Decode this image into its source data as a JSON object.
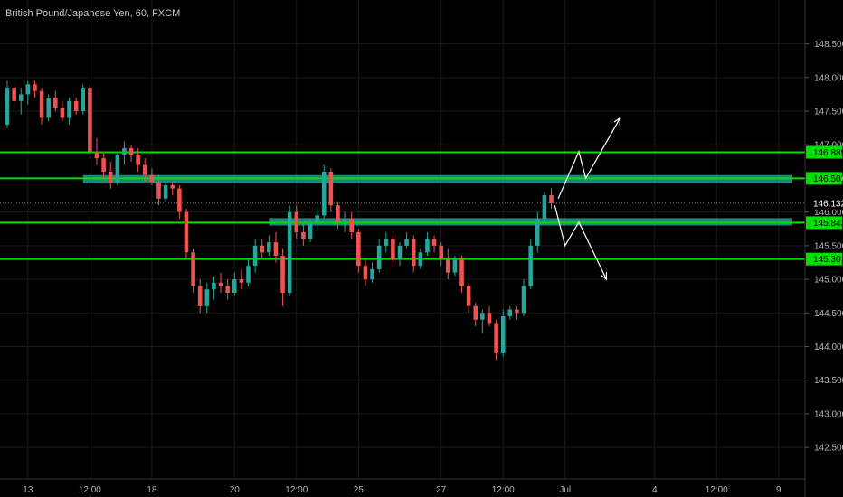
{
  "header": {
    "title": "British Pound/Japanese Yen, 60, FXCM"
  },
  "chart_data": {
    "type": "candlestick",
    "title": "British Pound/Japanese Yen, 60, FXCM",
    "symbol": "GBPJPY",
    "interval": "60",
    "source": "FXCM",
    "ylim": [
      142.3,
      148.75
    ],
    "y_ticks": [
      "142.500",
      "143.000",
      "143.500",
      "144.000",
      "144.500",
      "145.000",
      "145.500",
      "146.000",
      "146.500",
      "147.000",
      "147.500",
      "148.000",
      "148.500"
    ],
    "x_ticks": [
      {
        "label": "13",
        "i": 3
      },
      {
        "label": "12:00",
        "i": 12
      },
      {
        "label": "18",
        "i": 21
      },
      {
        "label": "20",
        "i": 33
      },
      {
        "label": "12:00",
        "i": 42
      },
      {
        "label": "25",
        "i": 51
      },
      {
        "label": "27",
        "i": 63
      },
      {
        "label": "12:00",
        "i": 72
      },
      {
        "label": "Jul",
        "i": 81
      },
      {
        "label": "4",
        "i": 94
      },
      {
        "label": "12:00",
        "i": 103
      },
      {
        "label": "9",
        "i": 112
      }
    ],
    "x_range": [
      0,
      114
    ],
    "colors": {
      "up": "#26a69a",
      "down": "#ef5350",
      "level": "#00e000",
      "zone": "#2ab0a8",
      "arrow": "#ffffff",
      "grid": "#1a1a1a"
    },
    "candles": [
      [
        0,
        147.3,
        147.95,
        147.25,
        147.85
      ],
      [
        1,
        147.85,
        147.9,
        147.55,
        147.65
      ],
      [
        2,
        147.65,
        147.85,
        147.45,
        147.75
      ],
      [
        3,
        147.75,
        147.95,
        147.6,
        147.9
      ],
      [
        4,
        147.9,
        147.95,
        147.7,
        147.8
      ],
      [
        5,
        147.8,
        147.85,
        147.3,
        147.4
      ],
      [
        6,
        147.4,
        147.75,
        147.35,
        147.7
      ],
      [
        7,
        147.7,
        147.8,
        147.5,
        147.55
      ],
      [
        8,
        147.55,
        147.65,
        147.35,
        147.4
      ],
      [
        9,
        147.4,
        147.7,
        147.3,
        147.65
      ],
      [
        10,
        147.65,
        147.7,
        147.45,
        147.5
      ],
      [
        11,
        147.5,
        147.9,
        147.45,
        147.85
      ],
      [
        12,
        147.85,
        147.9,
        146.8,
        146.9
      ],
      [
        13,
        146.9,
        147.1,
        146.7,
        146.8
      ],
      [
        14,
        146.8,
        146.9,
        146.5,
        146.6
      ],
      [
        15,
        146.6,
        146.75,
        146.35,
        146.45
      ],
      [
        16,
        146.45,
        146.9,
        146.4,
        146.85
      ],
      [
        17,
        146.85,
        147.05,
        146.7,
        146.95
      ],
      [
        18,
        146.95,
        147.0,
        146.75,
        146.85
      ],
      [
        19,
        146.85,
        146.95,
        146.6,
        146.7
      ],
      [
        20,
        146.7,
        146.8,
        146.45,
        146.55
      ],
      [
        21,
        146.55,
        146.65,
        146.4,
        146.45
      ],
      [
        22,
        146.45,
        146.55,
        146.1,
        146.2
      ],
      [
        23,
        146.2,
        146.45,
        146.15,
        146.4
      ],
      [
        24,
        146.4,
        146.45,
        146.25,
        146.35
      ],
      [
        25,
        146.35,
        146.4,
        145.9,
        146.0
      ],
      [
        26,
        146.0,
        146.05,
        145.3,
        145.4
      ],
      [
        27,
        145.4,
        145.45,
        144.8,
        144.9
      ],
      [
        28,
        144.9,
        145.0,
        144.5,
        144.6
      ],
      [
        29,
        144.6,
        144.95,
        144.5,
        144.85
      ],
      [
        30,
        144.85,
        145.05,
        144.7,
        144.95
      ],
      [
        31,
        144.95,
        145.1,
        144.8,
        144.9
      ],
      [
        32,
        144.9,
        145.0,
        144.7,
        144.8
      ],
      [
        33,
        144.8,
        145.1,
        144.75,
        145.0
      ],
      [
        34,
        145.0,
        145.15,
        144.85,
        144.95
      ],
      [
        35,
        144.95,
        145.3,
        144.9,
        145.2
      ],
      [
        36,
        145.2,
        145.6,
        145.1,
        145.5
      ],
      [
        37,
        145.5,
        145.6,
        145.3,
        145.4
      ],
      [
        38,
        145.4,
        145.65,
        145.35,
        145.55
      ],
      [
        39,
        145.55,
        145.7,
        145.25,
        145.35
      ],
      [
        40,
        145.35,
        145.45,
        144.6,
        144.8
      ],
      [
        41,
        144.8,
        146.1,
        144.75,
        146.0
      ],
      [
        42,
        146.0,
        146.1,
        145.6,
        145.7
      ],
      [
        43,
        145.7,
        145.85,
        145.5,
        145.6
      ],
      [
        44,
        145.6,
        145.9,
        145.55,
        145.85
      ],
      [
        45,
        145.85,
        146.05,
        145.75,
        145.95
      ],
      [
        46,
        145.95,
        146.7,
        145.9,
        146.6
      ],
      [
        47,
        146.6,
        146.65,
        146.0,
        146.1
      ],
      [
        48,
        146.1,
        146.15,
        145.75,
        145.85
      ],
      [
        49,
        145.85,
        146.0,
        145.7,
        145.9
      ],
      [
        50,
        145.9,
        146.0,
        145.6,
        145.7
      ],
      [
        51,
        145.7,
        145.75,
        145.1,
        145.2
      ],
      [
        52,
        145.2,
        145.3,
        144.9,
        145.0
      ],
      [
        53,
        145.0,
        145.25,
        144.95,
        145.15
      ],
      [
        54,
        145.15,
        145.6,
        145.1,
        145.5
      ],
      [
        55,
        145.5,
        145.7,
        145.4,
        145.6
      ],
      [
        56,
        145.6,
        145.65,
        145.2,
        145.3
      ],
      [
        57,
        145.3,
        145.55,
        145.2,
        145.5
      ],
      [
        58,
        145.5,
        145.7,
        145.45,
        145.6
      ],
      [
        59,
        145.6,
        145.65,
        145.1,
        145.2
      ],
      [
        60,
        145.2,
        145.45,
        145.15,
        145.4
      ],
      [
        61,
        145.4,
        145.7,
        145.35,
        145.6
      ],
      [
        62,
        145.6,
        145.65,
        145.4,
        145.5
      ],
      [
        63,
        145.5,
        145.55,
        145.2,
        145.3
      ],
      [
        64,
        145.3,
        145.45,
        145.0,
        145.1
      ],
      [
        65,
        145.1,
        145.35,
        145.05,
        145.3
      ],
      [
        66,
        145.3,
        145.35,
        144.8,
        144.9
      ],
      [
        67,
        144.9,
        144.95,
        144.5,
        144.6
      ],
      [
        68,
        144.6,
        144.65,
        144.3,
        144.4
      ],
      [
        69,
        144.4,
        144.55,
        144.2,
        144.5
      ],
      [
        70,
        144.5,
        144.6,
        144.3,
        144.35
      ],
      [
        71,
        144.35,
        144.4,
        143.8,
        143.9
      ],
      [
        72,
        143.9,
        144.55,
        143.85,
        144.45
      ],
      [
        73,
        144.45,
        144.6,
        144.4,
        144.55
      ],
      [
        74,
        144.55,
        144.6,
        144.4,
        144.5
      ],
      [
        75,
        144.5,
        145.0,
        144.45,
        144.9
      ],
      [
        76,
        144.9,
        145.6,
        144.85,
        145.5
      ],
      [
        77,
        145.5,
        146.0,
        145.4,
        145.9
      ],
      [
        78,
        145.9,
        146.3,
        145.85,
        146.25
      ],
      [
        79,
        146.25,
        146.35,
        146.05,
        146.13
      ]
    ],
    "levels": [
      {
        "name": "resistance-1",
        "value": 146.889,
        "label": "146.889"
      },
      {
        "name": "resistance-2",
        "value": 146.501,
        "label": "146.501"
      },
      {
        "name": "support-1",
        "value": 145.842,
        "label": "145.842"
      },
      {
        "name": "support-2",
        "value": 145.301,
        "label": "145.301"
      }
    ],
    "zones": [
      {
        "name": "upper-zone",
        "from_i": 11,
        "to_i": 114,
        "top": 146.55,
        "bottom": 146.43
      },
      {
        "name": "lower-zone",
        "from_i": 38,
        "to_i": 114,
        "top": 145.91,
        "bottom": 145.8
      }
    ],
    "current_price": {
      "value": 146.132,
      "label": "146.132"
    },
    "projections": [
      {
        "name": "bullish-path",
        "points": [
          [
            80,
            146.2
          ],
          [
            83,
            146.9
          ],
          [
            84,
            146.5
          ],
          [
            89,
            147.4
          ]
        ]
      },
      {
        "name": "bearish-path",
        "points": [
          [
            79.5,
            146.1
          ],
          [
            81,
            145.5
          ],
          [
            83,
            145.85
          ],
          [
            87,
            145.0
          ]
        ]
      }
    ]
  }
}
